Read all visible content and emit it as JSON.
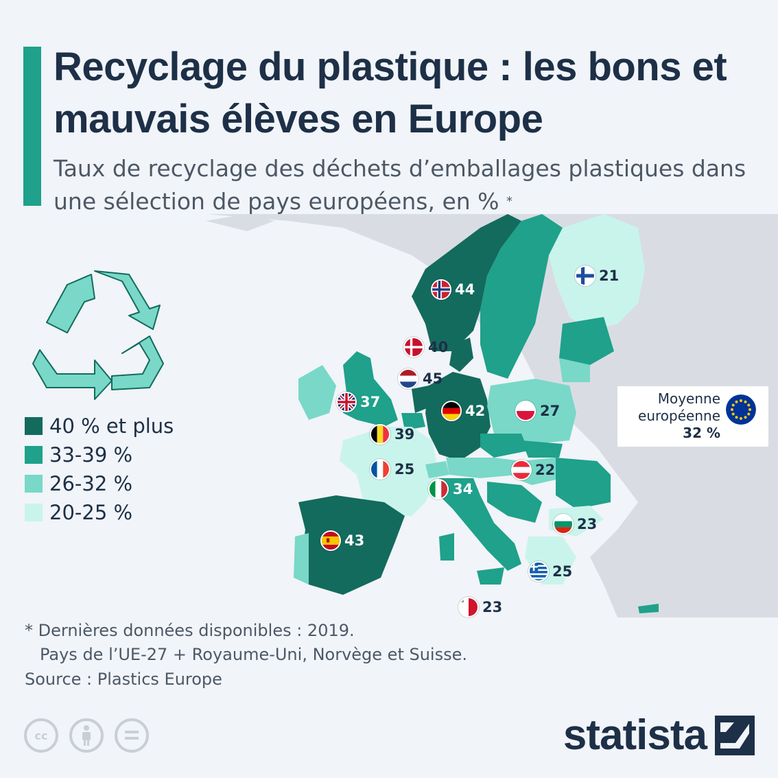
{
  "title": "Recyclage du plastique : les bons et mauvais élèves en Europe",
  "subtitle": "Taux de recyclage des déchets d’emballages plastiques dans une sélection de pays européens, en %",
  "subtitle_mark": "*",
  "legend": [
    {
      "label": "40 % et plus",
      "color": "#136b5d"
    },
    {
      "label": "33-39 %",
      "color": "#1fa18b"
    },
    {
      "label": "26-32 %",
      "color": "#79d8c8"
    },
    {
      "label": "20-25 %",
      "color": "#c9f4ec"
    }
  ],
  "countries": [
    {
      "flag": "norway",
      "value": "44"
    },
    {
      "flag": "finland",
      "value": "21"
    },
    {
      "flag": "denmark",
      "value": "40"
    },
    {
      "flag": "netherlands",
      "value": "45"
    },
    {
      "flag": "uk",
      "value": "37"
    },
    {
      "flag": "germany",
      "value": "42"
    },
    {
      "flag": "poland",
      "value": "27"
    },
    {
      "flag": "belgium",
      "value": "39"
    },
    {
      "flag": "france",
      "value": "25"
    },
    {
      "flag": "austria",
      "value": "22"
    },
    {
      "flag": "italy",
      "value": "34"
    },
    {
      "flag": "bulgaria",
      "value": "23"
    },
    {
      "flag": "spain",
      "value": "43"
    },
    {
      "flag": "greece",
      "value": "25"
    },
    {
      "flag": "malta",
      "value": "23"
    }
  ],
  "eu_average": {
    "line1": "Moyenne",
    "line2": "européenne",
    "value": "32 %",
    "flag": "eu-flag"
  },
  "footnote": {
    "line1": "* Dernières données disponibles : 2019.",
    "line2": "Pays de l’UE-27 + Royaume-Uni, Norvège et Suisse."
  },
  "source": "Source : Plastics Europe",
  "logo": "statista",
  "icons": [
    "recycle-icon",
    "cc-icon",
    "person-icon",
    "equals-icon"
  ],
  "colors": {
    "dark": "#136b5d",
    "mid": "#1fa18b",
    "light": "#79d8c8",
    "pale": "#c9f4ec",
    "land": "#d9dde3",
    "text": "#1d3047"
  }
}
